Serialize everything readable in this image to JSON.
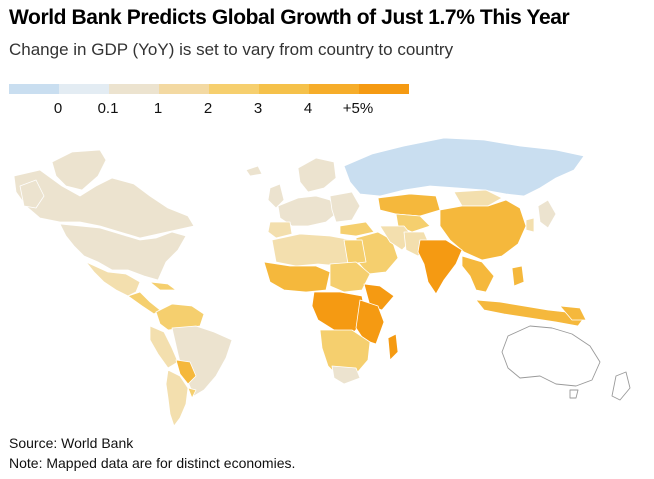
{
  "title": "World Bank Predicts Global Growth of Just 1.7% This Year",
  "subtitle": "Change in GDP (YoY) is set to vary from country to country",
  "legend": {
    "labels": [
      "0",
      "0.1",
      "1",
      "2",
      "3",
      "4",
      "+5%"
    ],
    "colors": [
      "#c9def0",
      "#e3ecf3",
      "#ece3cf",
      "#f3d9a2",
      "#f6cf6e",
      "#f5c14a",
      "#f6ad2a",
      "#f59a12"
    ]
  },
  "source": "Source: World Bank",
  "note": "Note: Mapped data are for distinct economies.",
  "colors": {
    "negative": "#c9def0",
    "flat": "#ece3cf",
    "low": "#f3dfae",
    "mid": "#f5cf6e",
    "high": "#f5b83c",
    "top": "#f59a12",
    "nodata": "#ffffff"
  }
}
